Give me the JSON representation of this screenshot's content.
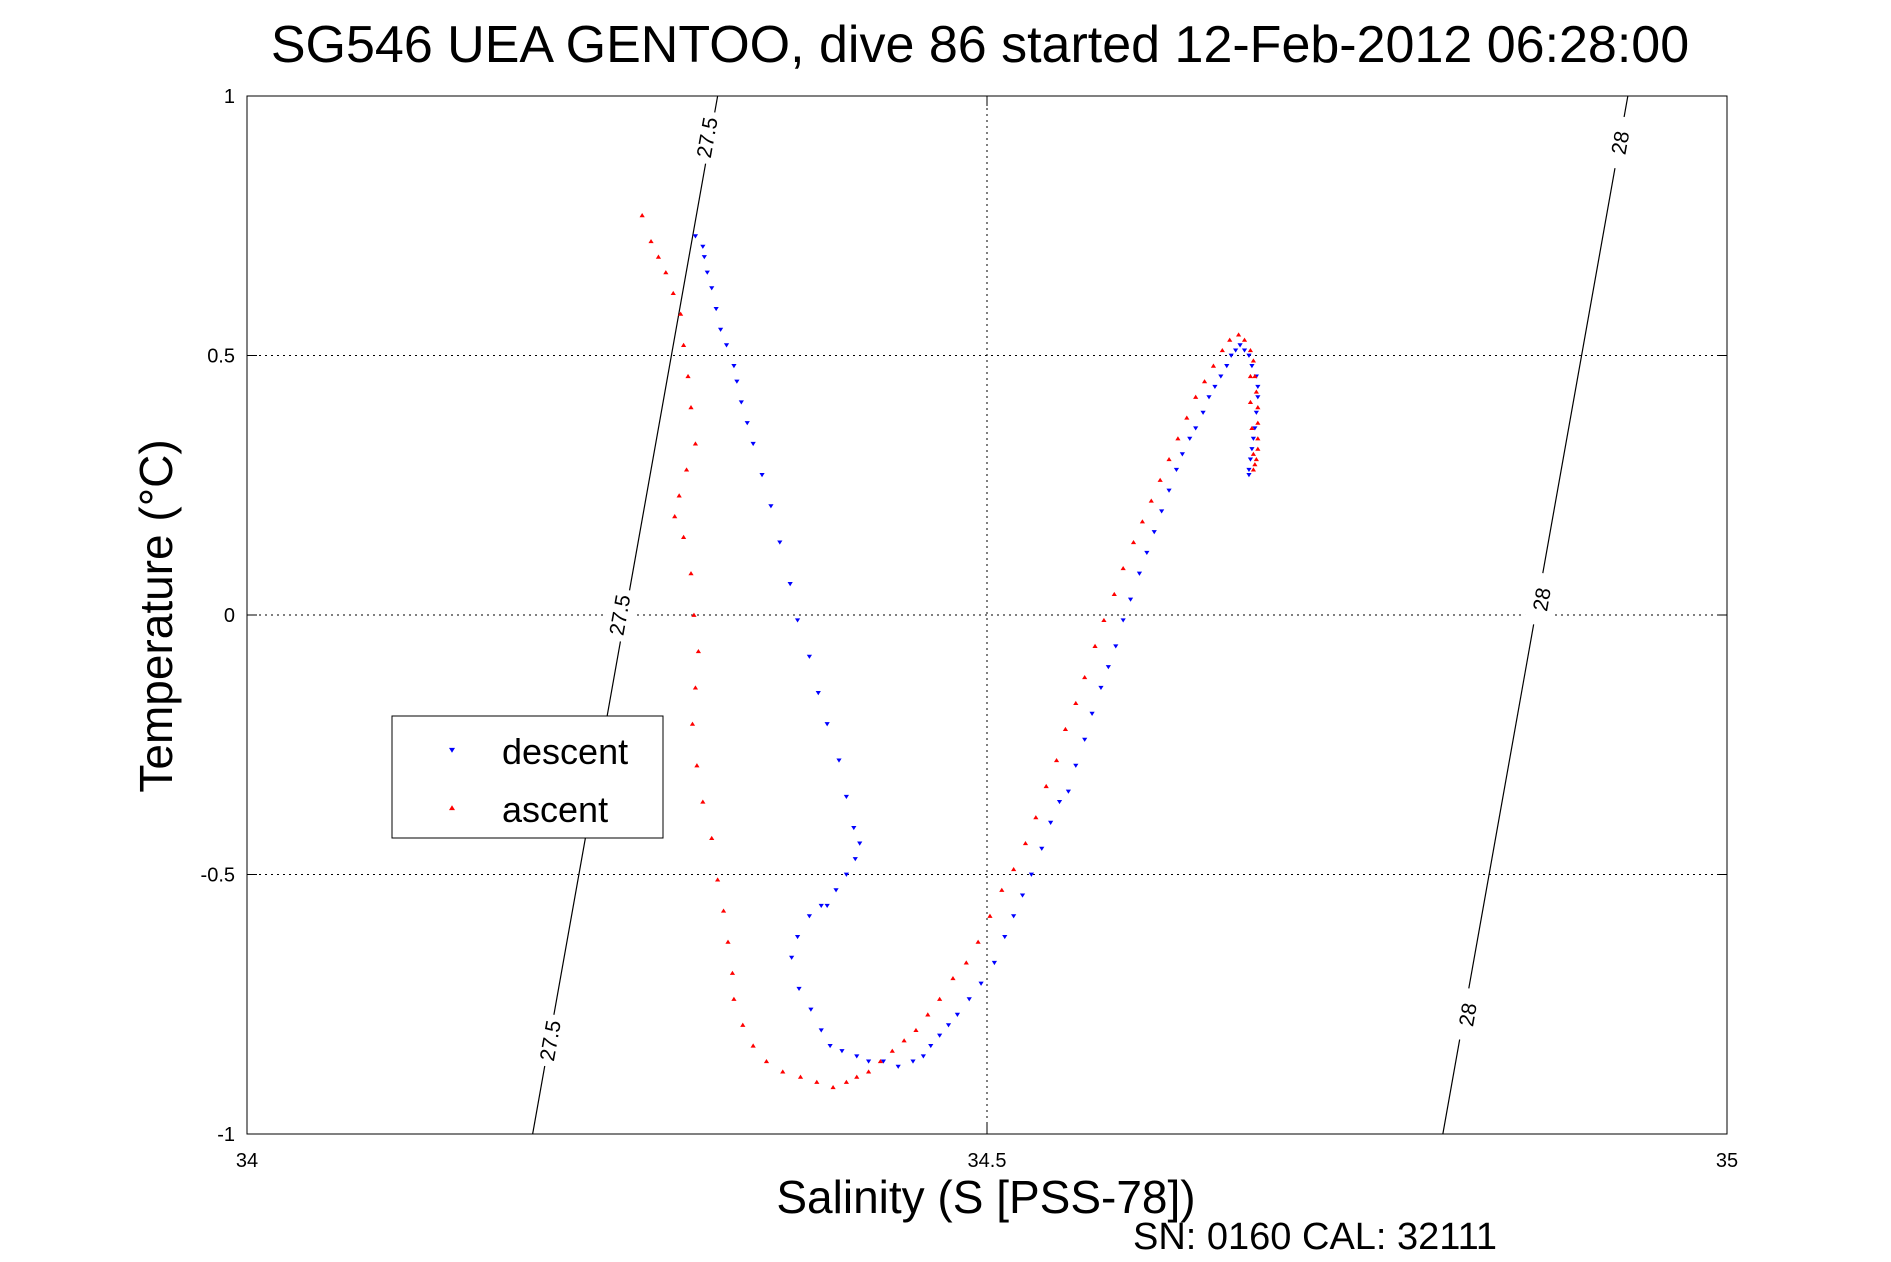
{
  "chart_data": {
    "type": "scatter",
    "title": "SG546 UEA GENTOO, dive 86 started 12-Feb-2012 06:28:00",
    "xlabel": "Salinity (S [PSS-78])",
    "ylabel": "Temperature (°C)",
    "footnote": "SN: 0160  CAL: 32111",
    "xlim": [
      34,
      35
    ],
    "ylim": [
      -1,
      1
    ],
    "xticks": [
      "34",
      "34.5",
      "35"
    ],
    "yticks": [
      "1",
      "0.5",
      "0",
      "-0.5",
      "-1"
    ],
    "grid": true,
    "legend_position": "center-left",
    "isopycnals": [
      {
        "label": "27.5",
        "x": [
          34.193,
          34.318
        ],
        "y": [
          -1,
          1
        ],
        "label_points": [
          [
            34.205,
            -0.82
          ],
          [
            34.252,
            0.0
          ],
          [
            34.311,
            0.92
          ]
        ]
      },
      {
        "label": "28",
        "x": [
          34.808,
          34.933
        ],
        "y": [
          -1,
          1
        ],
        "label_points": [
          [
            34.825,
            -0.77
          ],
          [
            34.875,
            0.03
          ],
          [
            34.928,
            0.91
          ]
        ]
      }
    ],
    "series": [
      {
        "name": "descent",
        "color": "#0000ff",
        "marker": "triangle-down",
        "x": [
          34.303,
          34.308,
          34.309,
          34.311,
          34.314,
          34.317,
          34.32,
          34.324,
          34.329,
          34.331,
          34.334,
          34.338,
          34.342,
          34.348,
          34.354,
          34.36,
          34.367,
          34.372,
          34.38,
          34.386,
          34.392,
          34.4,
          34.405,
          34.41,
          34.414,
          34.411,
          34.405,
          34.398,
          34.392,
          34.388,
          34.38,
          34.372,
          34.368,
          34.373,
          34.381,
          34.388,
          34.394,
          34.402,
          34.412,
          34.42,
          34.43,
          34.44,
          34.45,
          34.457,
          34.462,
          34.468,
          34.474,
          34.48,
          34.488,
          34.496,
          34.505,
          34.512,
          34.518,
          34.524,
          34.53,
          34.537,
          34.543,
          34.549,
          34.555,
          34.56,
          34.566,
          34.571,
          34.577,
          34.582,
          34.587,
          34.592,
          34.597,
          34.603,
          34.608,
          34.613,
          34.618,
          34.623,
          34.628,
          34.632,
          34.637,
          34.641,
          34.646,
          34.65,
          34.654,
          34.658,
          34.662,
          34.665,
          34.668,
          34.671,
          34.674,
          34.677,
          34.679,
          34.682,
          34.683,
          34.683,
          34.682,
          34.681,
          34.68,
          34.679,
          34.678,
          34.677,
          34.677
        ],
        "y": [
          0.73,
          0.71,
          0.69,
          0.66,
          0.63,
          0.59,
          0.55,
          0.52,
          0.48,
          0.45,
          0.41,
          0.37,
          0.33,
          0.27,
          0.21,
          0.14,
          0.06,
          -0.01,
          -0.08,
          -0.15,
          -0.21,
          -0.28,
          -0.35,
          -0.41,
          -0.44,
          -0.47,
          -0.5,
          -0.53,
          -0.56,
          -0.56,
          -0.58,
          -0.62,
          -0.66,
          -0.72,
          -0.76,
          -0.8,
          -0.83,
          -0.84,
          -0.85,
          -0.86,
          -0.86,
          -0.87,
          -0.86,
          -0.85,
          -0.83,
          -0.81,
          -0.79,
          -0.77,
          -0.74,
          -0.71,
          -0.67,
          -0.62,
          -0.58,
          -0.54,
          -0.5,
          -0.45,
          -0.4,
          -0.36,
          -0.34,
          -0.29,
          -0.24,
          -0.19,
          -0.14,
          -0.1,
          -0.06,
          -0.01,
          0.03,
          0.08,
          0.12,
          0.16,
          0.2,
          0.24,
          0.28,
          0.31,
          0.34,
          0.36,
          0.39,
          0.42,
          0.44,
          0.46,
          0.48,
          0.5,
          0.51,
          0.52,
          0.51,
          0.5,
          0.48,
          0.46,
          0.44,
          0.42,
          0.39,
          0.36,
          0.34,
          0.32,
          0.3,
          0.28,
          0.27
        ]
      },
      {
        "name": "ascent",
        "color": "#ff0000",
        "marker": "triangle-up",
        "x": [
          34.267,
          34.273,
          34.278,
          34.283,
          34.288,
          34.293,
          34.295,
          34.298,
          34.3,
          34.303,
          34.297,
          34.292,
          34.289,
          34.295,
          34.3,
          34.302,
          34.305,
          34.303,
          34.301,
          34.304,
          34.308,
          34.314,
          34.318,
          34.322,
          34.325,
          34.328,
          34.329,
          34.335,
          34.342,
          34.351,
          34.362,
          34.374,
          34.385,
          34.396,
          34.405,
          34.412,
          34.42,
          34.428,
          34.436,
          34.444,
          34.452,
          34.46,
          34.468,
          34.477,
          34.486,
          34.494,
          34.502,
          34.51,
          34.518,
          34.526,
          34.533,
          34.54,
          34.547,
          34.553,
          34.56,
          34.566,
          34.573,
          34.579,
          34.586,
          34.592,
          34.599,
          34.605,
          34.611,
          34.617,
          34.623,
          34.629,
          34.635,
          34.641,
          34.647,
          34.653,
          34.659,
          34.664,
          34.67,
          34.674,
          34.678,
          34.68,
          34.681,
          34.682,
          34.683,
          34.683,
          34.683,
          34.683,
          34.682,
          34.681,
          34.68,
          34.68,
          34.679,
          34.678,
          34.678
        ],
        "y": [
          0.77,
          0.72,
          0.69,
          0.66,
          0.62,
          0.58,
          0.52,
          0.46,
          0.4,
          0.33,
          0.28,
          0.23,
          0.19,
          0.15,
          0.08,
          0.0,
          -0.07,
          -0.14,
          -0.21,
          -0.29,
          -0.36,
          -0.43,
          -0.51,
          -0.57,
          -0.63,
          -0.69,
          -0.74,
          -0.79,
          -0.83,
          -0.86,
          -0.88,
          -0.89,
          -0.9,
          -0.91,
          -0.9,
          -0.89,
          -0.88,
          -0.86,
          -0.84,
          -0.82,
          -0.8,
          -0.77,
          -0.74,
          -0.7,
          -0.67,
          -0.63,
          -0.58,
          -0.53,
          -0.49,
          -0.44,
          -0.39,
          -0.33,
          -0.28,
          -0.22,
          -0.17,
          -0.12,
          -0.06,
          -0.01,
          0.04,
          0.09,
          0.14,
          0.18,
          0.22,
          0.26,
          0.3,
          0.34,
          0.38,
          0.42,
          0.45,
          0.48,
          0.51,
          0.53,
          0.54,
          0.53,
          0.51,
          0.49,
          0.46,
          0.43,
          0.4,
          0.37,
          0.34,
          0.32,
          0.3,
          0.29,
          0.28,
          0.31,
          0.36,
          0.41,
          0.46
        ]
      }
    ]
  }
}
